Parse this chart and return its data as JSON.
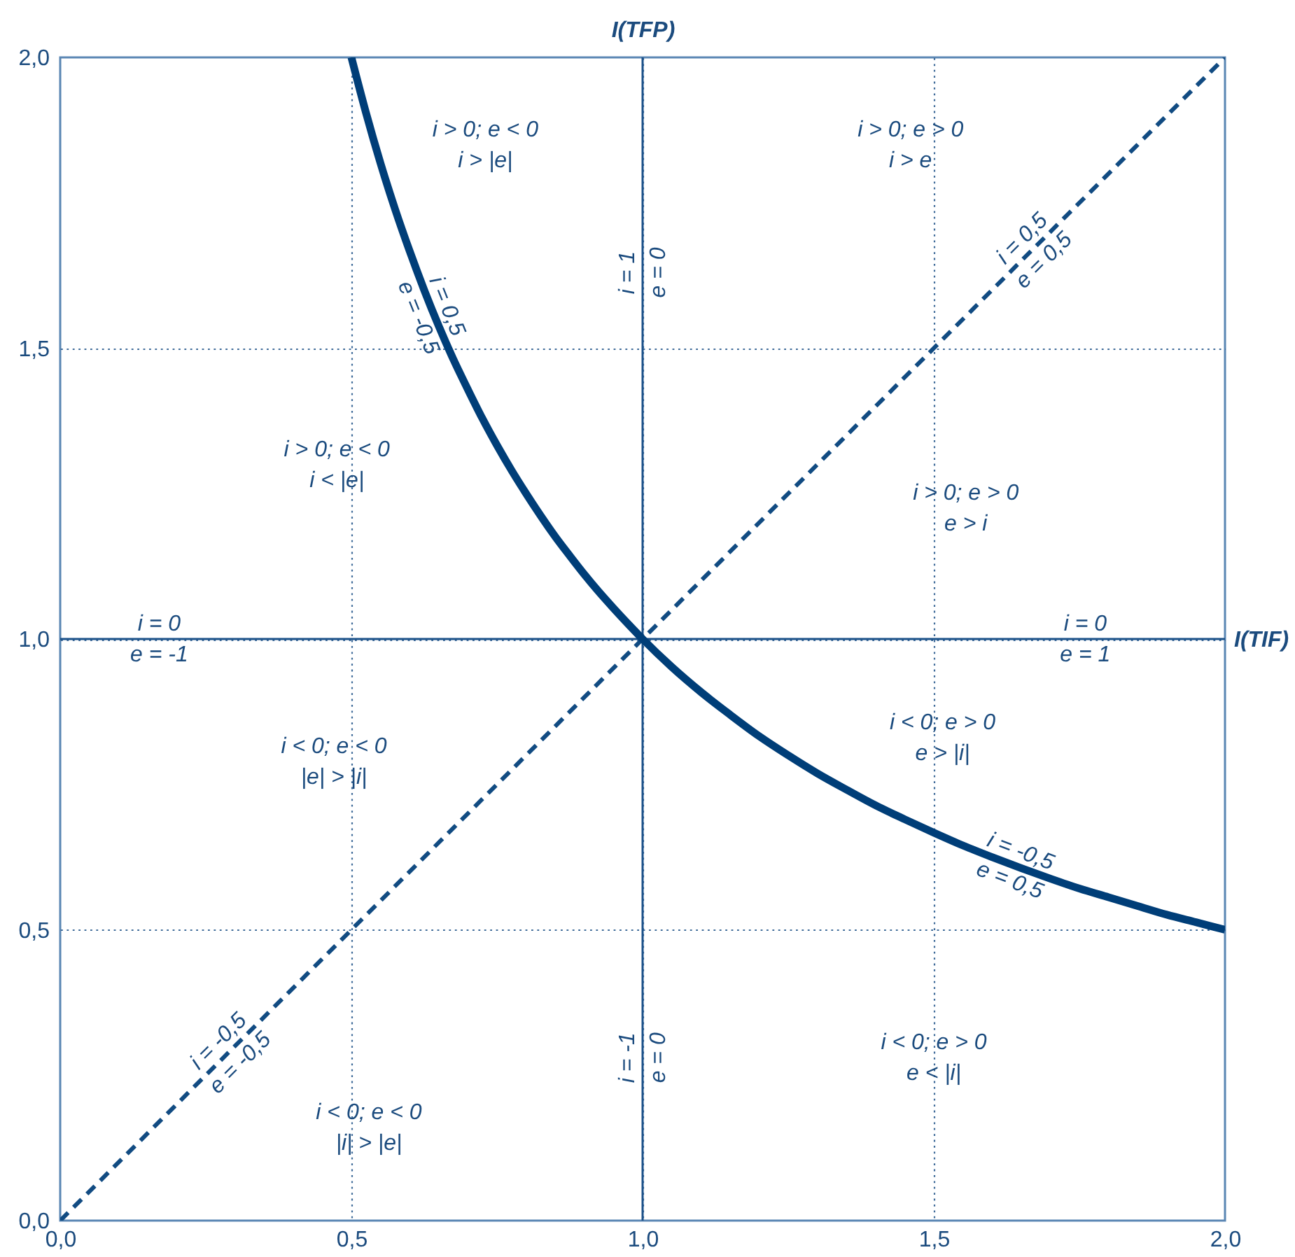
{
  "chart_data": {
    "type": "line",
    "xlabel": "I(TIF)",
    "ylabel": "I(TFP)",
    "xlim": [
      0,
      2
    ],
    "ylim": [
      0,
      2
    ],
    "xticks": [
      {
        "value": 0,
        "label": "0,0"
      },
      {
        "value": 0.5,
        "label": "0,5"
      },
      {
        "value": 1,
        "label": "1,0"
      },
      {
        "value": 1.5,
        "label": "1,5"
      },
      {
        "value": 2,
        "label": "2,0"
      }
    ],
    "yticks": [
      {
        "value": 0,
        "label": "0,0"
      },
      {
        "value": 0.5,
        "label": "0,5"
      },
      {
        "value": 1,
        "label": "1,0"
      },
      {
        "value": 1.5,
        "label": "1,5"
      },
      {
        "value": 2,
        "label": "2,0"
      }
    ],
    "grid": true,
    "series": [
      {
        "color": "#1b5189",
        "line_style": "solid",
        "x": [
          1,
          1
        ],
        "values": [
          0,
          2
        ]
      },
      {
        "color": "#1b5189",
        "line_style": "solid",
        "x": [
          0,
          2
        ],
        "values": [
          1,
          1
        ]
      },
      {
        "color": "#114b82",
        "line_style": "dashed",
        "x": [
          0,
          2
        ],
        "values": [
          0,
          2
        ]
      },
      {
        "color": "#003e78",
        "line_style": "solid",
        "x": [
          0.5,
          0.525,
          0.55,
          0.575,
          0.6,
          0.625,
          0.65,
          0.675,
          0.7,
          0.725,
          0.75,
          0.775,
          0.8,
          0.825,
          0.85,
          0.875,
          0.9,
          0.925,
          0.95,
          0.975,
          1.0,
          1.05,
          1.1,
          1.15,
          1.2,
          1.25,
          1.3,
          1.35,
          1.4,
          1.45,
          1.5,
          1.55,
          1.6,
          1.65,
          1.7,
          1.75,
          1.8,
          1.85,
          1.9,
          1.95,
          2.0
        ],
        "values": [
          2.0,
          1.905,
          1.818,
          1.739,
          1.667,
          1.6,
          1.538,
          1.481,
          1.429,
          1.379,
          1.333,
          1.29,
          1.25,
          1.212,
          1.176,
          1.143,
          1.111,
          1.081,
          1.053,
          1.026,
          1.0,
          0.952,
          0.909,
          0.87,
          0.833,
          0.8,
          0.769,
          0.741,
          0.714,
          0.69,
          0.667,
          0.645,
          0.625,
          0.606,
          0.588,
          0.571,
          0.556,
          0.541,
          0.526,
          0.513,
          0.5
        ]
      }
    ],
    "annotations": [
      "i > 0; e < 0\ni > |e|",
      "i > 0; e > 0\ni > e",
      "i > 0; e < 0\ni < |e|",
      "i > 0; e > 0\ne > i",
      "i < 0; e < 0\n|e| > |i|",
      "i < 0; e > 0\ne > |i|",
      "i < 0; e > 0\ne < |i|",
      "i < 0; e < 0\n|i| > |e|",
      {
        "text": "i = 1\ne = 0",
        "x": 1,
        "y": 1.63
      },
      {
        "text": "i = 0,5\ne = 0,5",
        "x": 1.67,
        "y": 1.67
      },
      {
        "text": "i = 0,5\ne = -0,5",
        "x": 0.64,
        "y": 1.5625
      },
      {
        "text": "i = 0\ne = -1",
        "x": 0.17,
        "y": 1
      },
      {
        "text": "i = 0\ne = 1",
        "x": 1.76,
        "y": 1
      },
      {
        "text": "i = -0,5\ne = 0,5",
        "x": 1.64,
        "y": 0.61
      },
      {
        "text": "i = -0,5\ne = -0,5",
        "x": 0.29,
        "y": 0.29
      },
      {
        "text": "i = -1\ne = 0",
        "x": 1,
        "y": 0.28
      }
    ]
  }
}
